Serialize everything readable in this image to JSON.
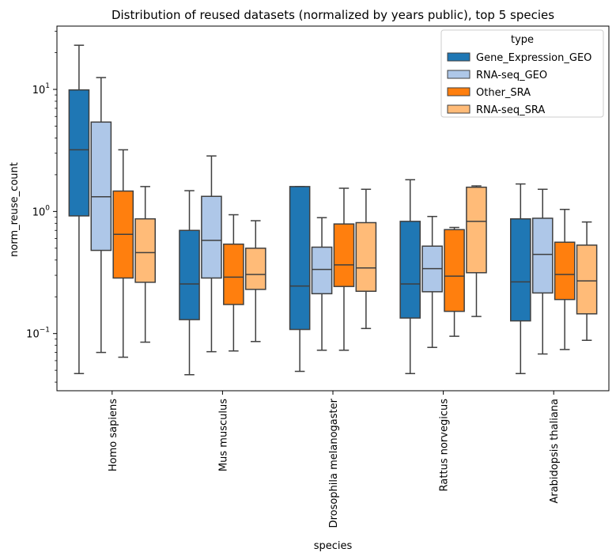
{
  "chart_data": {
    "type": "boxplot",
    "title": "Distribution of reused datasets (normalized by years public), top 5 species",
    "xlabel": "species",
    "ylabel": "norm_reuse_count",
    "yscale": "log",
    "ylim": [
      0.034,
      33
    ],
    "yticks": [
      {
        "value": 0.1,
        "base": "10",
        "exp": "−1"
      },
      {
        "value": 1,
        "base": "10",
        "exp": "0"
      },
      {
        "value": 10,
        "base": "10",
        "exp": "1"
      }
    ],
    "categories": [
      "Homo sapiens",
      "Mus musculus",
      "Drosophila melanogaster",
      "Rattus norvegicus",
      "Arabidopsis thaliana"
    ],
    "legend": {
      "title": "type",
      "position": "upper right"
    },
    "series": [
      {
        "name": "Gene_Expression_GEO",
        "color": "#1f77b4",
        "boxes": [
          {
            "whislo": 0.047,
            "q1": 0.92,
            "med": 3.2,
            "q3": 9.9,
            "whishi": 23.0
          },
          {
            "whislo": 0.046,
            "q1": 0.13,
            "med": 0.255,
            "q3": 0.7,
            "whishi": 1.48
          },
          {
            "whislo": 0.049,
            "q1": 0.108,
            "med": 0.245,
            "q3": 1.6,
            "whishi": 1.6
          },
          {
            "whislo": 0.047,
            "q1": 0.134,
            "med": 0.255,
            "q3": 0.83,
            "whishi": 1.82
          },
          {
            "whislo": 0.047,
            "q1": 0.127,
            "med": 0.265,
            "q3": 0.87,
            "whishi": 1.68
          }
        ]
      },
      {
        "name": "RNA-seq_GEO",
        "color": "#aec7e8",
        "boxes": [
          {
            "whislo": 0.07,
            "q1": 0.48,
            "med": 1.32,
            "q3": 5.4,
            "whishi": 12.5
          },
          {
            "whislo": 0.071,
            "q1": 0.285,
            "med": 0.58,
            "q3": 1.33,
            "whishi": 2.85
          },
          {
            "whislo": 0.073,
            "q1": 0.212,
            "med": 0.335,
            "q3": 0.51,
            "whishi": 0.89
          },
          {
            "whislo": 0.077,
            "q1": 0.22,
            "med": 0.34,
            "q3": 0.52,
            "whishi": 0.91
          },
          {
            "whislo": 0.068,
            "q1": 0.215,
            "med": 0.445,
            "q3": 0.88,
            "whishi": 1.52
          }
        ]
      },
      {
        "name": "Other_SRA",
        "color": "#ff7f0e",
        "boxes": [
          {
            "whislo": 0.064,
            "q1": 0.285,
            "med": 0.65,
            "q3": 1.47,
            "whishi": 3.2
          },
          {
            "whislo": 0.072,
            "q1": 0.173,
            "med": 0.29,
            "q3": 0.54,
            "whishi": 0.94
          },
          {
            "whislo": 0.073,
            "q1": 0.243,
            "med": 0.365,
            "q3": 0.79,
            "whishi": 1.55
          },
          {
            "whislo": 0.095,
            "q1": 0.152,
            "med": 0.295,
            "q3": 0.71,
            "whishi": 0.74
          },
          {
            "whislo": 0.074,
            "q1": 0.19,
            "med": 0.305,
            "q3": 0.56,
            "whishi": 1.04
          }
        ]
      },
      {
        "name": "RNA-seq_SRA",
        "color": "#ffbb78",
        "boxes": [
          {
            "whislo": 0.085,
            "q1": 0.263,
            "med": 0.46,
            "q3": 0.87,
            "whishi": 1.6
          },
          {
            "whislo": 0.086,
            "q1": 0.23,
            "med": 0.305,
            "q3": 0.5,
            "whishi": 0.84
          },
          {
            "whislo": 0.11,
            "q1": 0.222,
            "med": 0.345,
            "q3": 0.81,
            "whishi": 1.52
          },
          {
            "whislo": 0.138,
            "q1": 0.315,
            "med": 0.83,
            "q3": 1.58,
            "whishi": 1.62
          },
          {
            "whislo": 0.088,
            "q1": 0.145,
            "med": 0.27,
            "q3": 0.53,
            "whishi": 0.82
          }
        ]
      }
    ]
  }
}
